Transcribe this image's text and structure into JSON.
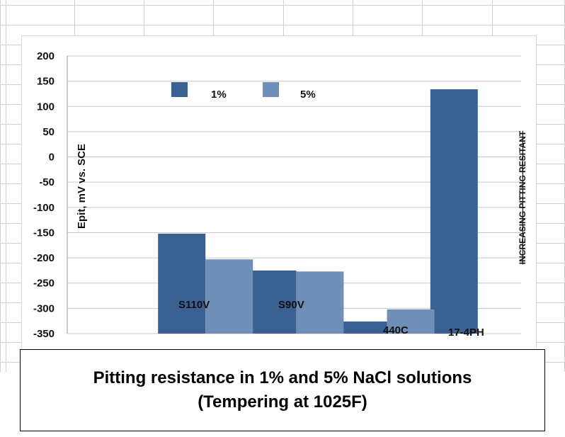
{
  "chart_data": {
    "type": "bar",
    "categories": [
      "",
      "S110V",
      "S90V",
      "440C",
      "17-4PH"
    ],
    "series": [
      {
        "name": "1%",
        "values": [
          null,
          -152,
          -225,
          -326,
          134
        ],
        "color": "#3b6092"
      },
      {
        "name": "5%",
        "values": [
          null,
          -203,
          -227,
          -302,
          null
        ],
        "color": "#6f8fb8"
      }
    ],
    "ylabel": "Epit, mV vs. SCE",
    "ylim": [
      -350,
      200
    ],
    "yticks": [
      200,
      150,
      100,
      50,
      0,
      -50,
      -100,
      -150,
      -200,
      -250,
      -300,
      -350
    ],
    "grid": true,
    "legend_placement": "top",
    "annotation": "INCREASING PITTING RESITANT"
  },
  "caption": {
    "line1": "Pitting resistance in 1% and 5% NaCl solutions",
    "line2": "(Tempering at 1025F)"
  },
  "colors": {
    "series_1": "#3b6092",
    "series_2": "#6f8fb8",
    "gridline": "#c8c8c8",
    "sheet_grid": "#d0d0d0"
  }
}
